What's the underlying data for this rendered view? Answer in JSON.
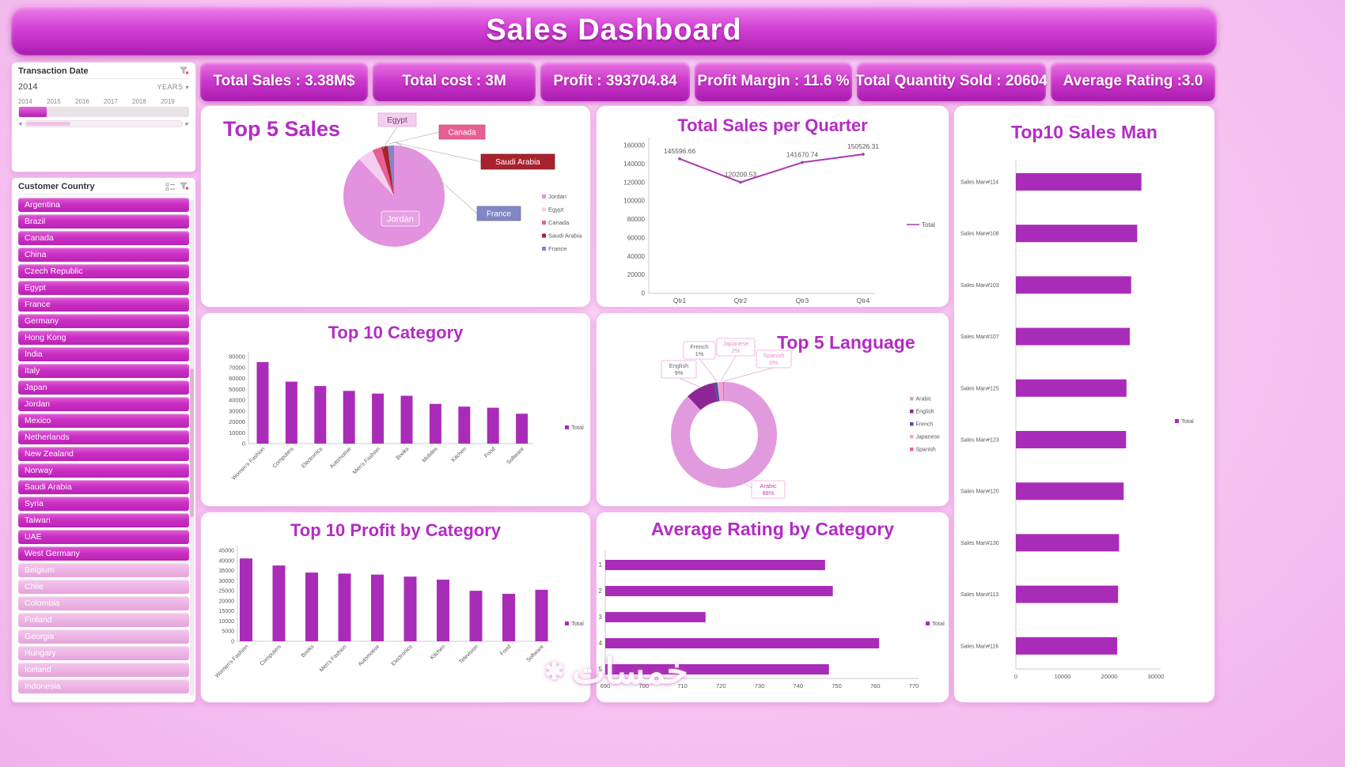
{
  "header": {
    "title": "Sales Dashboard"
  },
  "kpis": [
    {
      "text": "Total Sales : 3.38M$"
    },
    {
      "text": "Total cost : 3M"
    },
    {
      "text": "Profit : 393704.84"
    },
    {
      "text": "Profit Margin : 11.6 %"
    },
    {
      "text": "Total Quantity Sold : 20604"
    },
    {
      "text": "Average Rating :3.0"
    }
  ],
  "sidebar": {
    "transaction_date": {
      "title": "Transaction Date",
      "selected_value": "2014",
      "period_label": "YEARS",
      "years": [
        "2014",
        "2015",
        "2016",
        "2017",
        "2018",
        "2019"
      ]
    },
    "customer_country": {
      "title": "Customer Country",
      "items": [
        {
          "label": "Argentina",
          "selected": true
        },
        {
          "label": "Brazil",
          "selected": true
        },
        {
          "label": "Canada",
          "selected": true
        },
        {
          "label": "China",
          "selected": true
        },
        {
          "label": "Czech Republic",
          "selected": true
        },
        {
          "label": "Egypt",
          "selected": true
        },
        {
          "label": "France",
          "selected": true
        },
        {
          "label": "Germany",
          "selected": true
        },
        {
          "label": "Hong Kong",
          "selected": true
        },
        {
          "label": "India",
          "selected": true
        },
        {
          "label": "Italy",
          "selected": true
        },
        {
          "label": "Japan",
          "selected": true
        },
        {
          "label": "Jordan",
          "selected": true
        },
        {
          "label": "Mexico",
          "selected": true
        },
        {
          "label": "Netherlands",
          "selected": true
        },
        {
          "label": "New Zealand",
          "selected": true
        },
        {
          "label": "Norway",
          "selected": true
        },
        {
          "label": "Saudi Arabia",
          "selected": true
        },
        {
          "label": "Syria",
          "selected": true
        },
        {
          "label": "Taiwan",
          "selected": true
        },
        {
          "label": "UAE",
          "selected": true
        },
        {
          "label": "West Germany",
          "selected": true
        },
        {
          "label": "Belgium",
          "selected": false
        },
        {
          "label": "Chile",
          "selected": false
        },
        {
          "label": "Colombia",
          "selected": false
        },
        {
          "label": "Finland",
          "selected": false
        },
        {
          "label": "Georgia",
          "selected": false
        },
        {
          "label": "Hungary",
          "selected": false
        },
        {
          "label": "Iceland",
          "selected": false
        },
        {
          "label": "Indonesia",
          "selected": false
        }
      ]
    }
  },
  "watermark": {
    "text": "خمسات",
    "icon": "✱"
  },
  "colors": {
    "accent": "#b32cc4",
    "bar": "#a92cb8"
  },
  "chart_data": [
    {
      "id": "top5-sales",
      "type": "pie",
      "title": "Top 5 Sales",
      "labels": [
        "Jordan",
        "Egypt",
        "Canada",
        "Saudi Arabia",
        "France"
      ],
      "values": [
        88,
        5,
        3,
        2,
        2
      ],
      "colors": [
        "#e292de",
        "#f5cdf0",
        "#e75f93",
        "#a7222c",
        "#8286c2"
      ],
      "legend_position": "right"
    },
    {
      "id": "sales-per-quarter",
      "type": "line",
      "title": "Total Sales per Quarter",
      "categories": [
        "Qtr1",
        "Qtr2",
        "Qtr3",
        "Qtr4"
      ],
      "values": [
        145596.66,
        120209.53,
        141670.74,
        150526.31
      ],
      "labels": [
        "145596.66",
        "120209.53",
        "141670.74",
        "150526.31"
      ],
      "ylim": [
        0,
        160000
      ],
      "ytick": 20000,
      "legend": "Total",
      "color": "#a839b0"
    },
    {
      "id": "top10-salesman",
      "type": "hbar",
      "title": "Top10 Sales Man",
      "categories": [
        "Sales Man#114",
        "Sales Man#108",
        "Sales Man#103",
        "Sales Man#107",
        "Sales Man#125",
        "Sales Man#123",
        "Sales Man#120",
        "Sales Man#130",
        "Sales Man#113",
        "Sales Man#116"
      ],
      "values": [
        26900,
        26000,
        24700,
        24400,
        23700,
        23600,
        23100,
        22100,
        21900,
        21700
      ],
      "xlim": [
        0,
        30000
      ],
      "xticks": [
        0,
        10000,
        20000,
        30000
      ],
      "legend": "Total",
      "color": "#a92cb8"
    },
    {
      "id": "top10-category",
      "type": "bar",
      "title": "Top 10 Category",
      "categories": [
        "Women's Fashion",
        "Computers",
        "Electronics",
        "Automotive",
        "Men's Fashion",
        "Books",
        "Mobiles",
        "Kitchen",
        "Food",
        "Software"
      ],
      "values": [
        75000,
        57000,
        53000,
        48500,
        46000,
        44000,
        36500,
        34000,
        33000,
        27500
      ],
      "ylim": [
        0,
        80000
      ],
      "ytick": 10000,
      "legend": "Total",
      "color": "#a92cb8"
    },
    {
      "id": "top5-language",
      "type": "donut",
      "title": "Top 5 Language",
      "labels": [
        "Arabic",
        "English",
        "French",
        "Japanese",
        "Spanish"
      ],
      "values": [
        88,
        9,
        1,
        1.7,
        0.3
      ],
      "pcts": [
        "88%",
        "9%",
        "1%",
        "2%",
        "0%"
      ],
      "colors": [
        "#e29ade",
        "#8d2694",
        "#50509e",
        "#f0a2d6",
        "#e9679f"
      ],
      "legend_position": "right"
    },
    {
      "id": "top10-profit",
      "type": "bar",
      "title": "Top 10 Profit by Category",
      "categories": [
        "Women's Fashion",
        "Computers",
        "Books",
        "Men's Fashion",
        "Automotive",
        "Electronics",
        "Kitchen",
        "Television",
        "Food",
        "Software"
      ],
      "values": [
        41000,
        37500,
        34000,
        33500,
        33000,
        32000,
        30500,
        25000,
        23500,
        25500
      ],
      "ylim": [
        0,
        45000
      ],
      "ytick": 5000,
      "legend": "Total",
      "color": "#a92cb8"
    },
    {
      "id": "avg-rating",
      "type": "hbar",
      "title": "Average Rating by Category",
      "categories": [
        "1",
        "2",
        "3",
        "4",
        "5"
      ],
      "values": [
        747,
        749,
        716,
        761,
        748
      ],
      "xlim": [
        690,
        770
      ],
      "xticks": [
        690,
        700,
        710,
        720,
        730,
        740,
        750,
        760,
        770
      ],
      "legend": "Total",
      "color": "#a92cb8"
    }
  ]
}
